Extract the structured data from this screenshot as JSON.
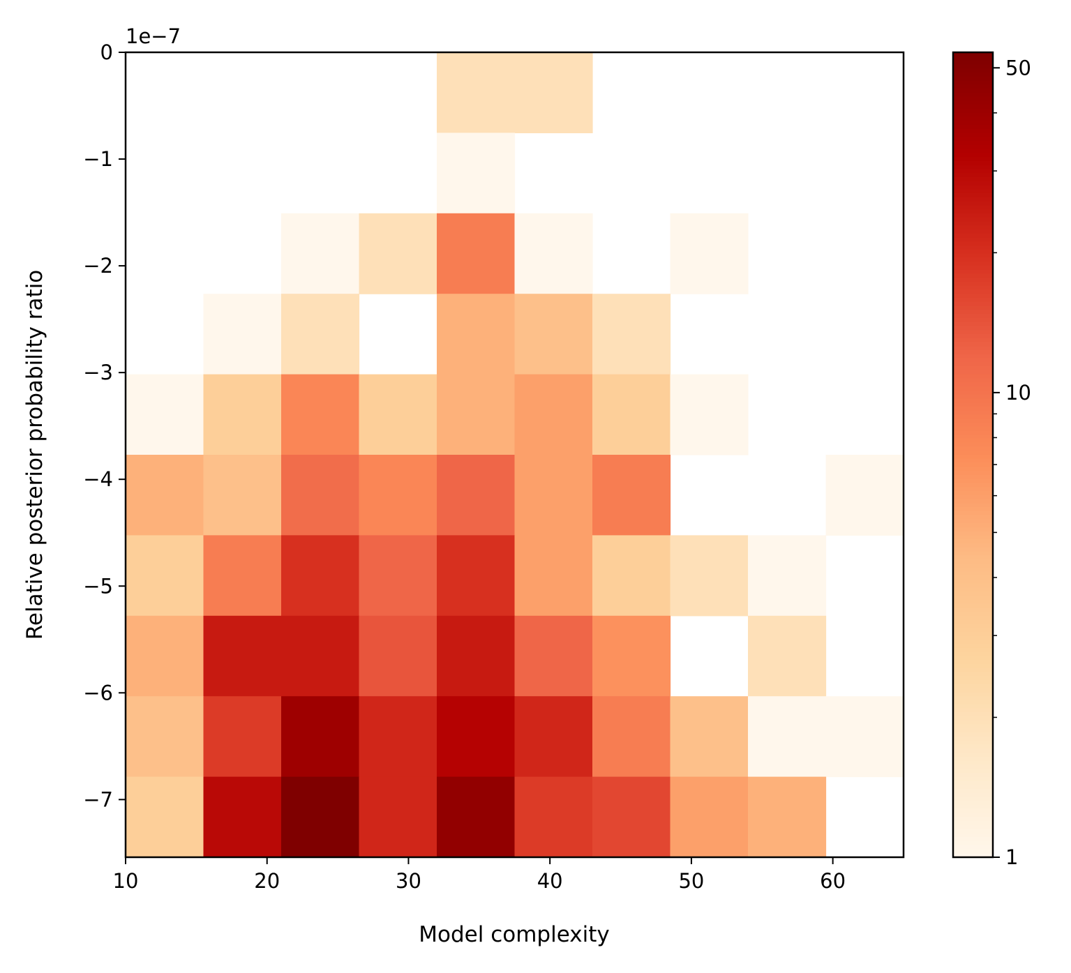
{
  "chart_data": {
    "type": "heatmap",
    "title": "",
    "xlabel": "Model complexity",
    "ylabel": "Relative posterior probability ratio",
    "y_offset_label": "1e−7",
    "xlim": [
      10,
      65
    ],
    "ylim": [
      -7.54,
      0
    ],
    "y_scale_factor": 1e-07,
    "x_bin_edges": [
      10,
      15.5,
      21,
      26.5,
      32,
      37.5,
      43,
      48.5,
      54,
      59.5,
      65
    ],
    "y_bin_edges": [
      0,
      -0.754,
      -1.508,
      -2.262,
      -3.016,
      -3.77,
      -4.524,
      -5.278,
      -6.032,
      -6.786,
      -7.54
    ],
    "x_ticks": [
      10,
      20,
      30,
      40,
      50,
      60
    ],
    "x_tick_labels": [
      "10",
      "20",
      "30",
      "40",
      "50",
      "60"
    ],
    "y_ticks": [
      0,
      -1,
      -2,
      -3,
      -4,
      -5,
      -6,
      -7
    ],
    "y_tick_labels": [
      "0",
      "−1",
      "−2",
      "−3",
      "−4",
      "−5",
      "−6",
      "−7"
    ],
    "counts_rows_top_to_bottom": [
      [
        0,
        0,
        0,
        0,
        2,
        2,
        0,
        0,
        0,
        0
      ],
      [
        0,
        0,
        0,
        0,
        1,
        0,
        0,
        0,
        0,
        0
      ],
      [
        0,
        0,
        1,
        2,
        9,
        1,
        0,
        1,
        0,
        0
      ],
      [
        0,
        1,
        2,
        0,
        5,
        4,
        2,
        0,
        0,
        0
      ],
      [
        1,
        3,
        8,
        3,
        5,
        6,
        3,
        1,
        0,
        0
      ],
      [
        5,
        4,
        11,
        8,
        12,
        6,
        9,
        0,
        0,
        1
      ],
      [
        3,
        9,
        20,
        12,
        20,
        6,
        3,
        2,
        1,
        0
      ],
      [
        5,
        25,
        25,
        14,
        25,
        12,
        7,
        0,
        2,
        0
      ],
      [
        4,
        18,
        40,
        22,
        32,
        22,
        9,
        4,
        1,
        1
      ],
      [
        3,
        30,
        54,
        22,
        45,
        18,
        16,
        6,
        5,
        0
      ]
    ],
    "colorbar": {
      "scale": "log",
      "colormap": "OrRd",
      "range": [
        1,
        54
      ],
      "ticks": [
        1,
        10,
        50
      ],
      "tick_labels": [
        "1",
        "10",
        "50"
      ],
      "minor_ticks": [
        2,
        3,
        4,
        5,
        6,
        7,
        8,
        9,
        20,
        30,
        40
      ]
    },
    "colormap_stops": [
      "#fff7ec",
      "#fee8c8",
      "#fdd49e",
      "#fdbb84",
      "#fc8d59",
      "#ef6548",
      "#d7301f",
      "#b30000",
      "#7f0000"
    ]
  }
}
